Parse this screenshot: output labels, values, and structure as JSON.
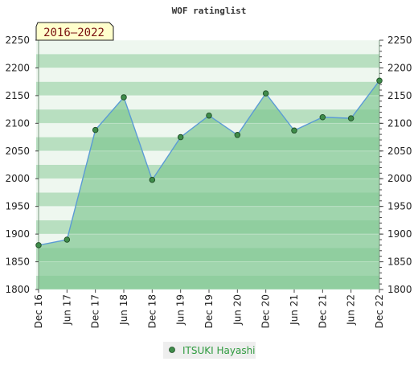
{
  "chart_data": {
    "type": "area",
    "title": "WOF ratinglist",
    "period_badge": "2016–2022",
    "x": [
      "Dec 16",
      "Jun 17",
      "Dec 17",
      "Jun 18",
      "Dec 18",
      "Jun 19",
      "Dec 19",
      "Jun 20",
      "Dec 20",
      "Jun 21",
      "Dec 21",
      "Jun 22",
      "Dec 22"
    ],
    "series": [
      {
        "name": "ITSUKI Hayashi",
        "values": [
          1880,
          1890,
          2088,
          2147,
          1998,
          2075,
          2114,
          2079,
          2154,
          2087,
          2111,
          2109,
          2177
        ]
      }
    ],
    "ylim": [
      1800,
      2250
    ],
    "yticks": [
      1800,
      1850,
      1900,
      1950,
      2000,
      2050,
      2100,
      2150,
      2200,
      2250
    ],
    "xlabel": "",
    "ylabel": "",
    "grid": true,
    "legend_position": "bottom-center",
    "colors": {
      "line": "#5b9bd5",
      "marker": "#3f8c4a",
      "area": "#7fc691",
      "band_light": "#eef7ef",
      "band_dark": "#b8dfc0",
      "badge_bg": "#ffffcc"
    }
  }
}
